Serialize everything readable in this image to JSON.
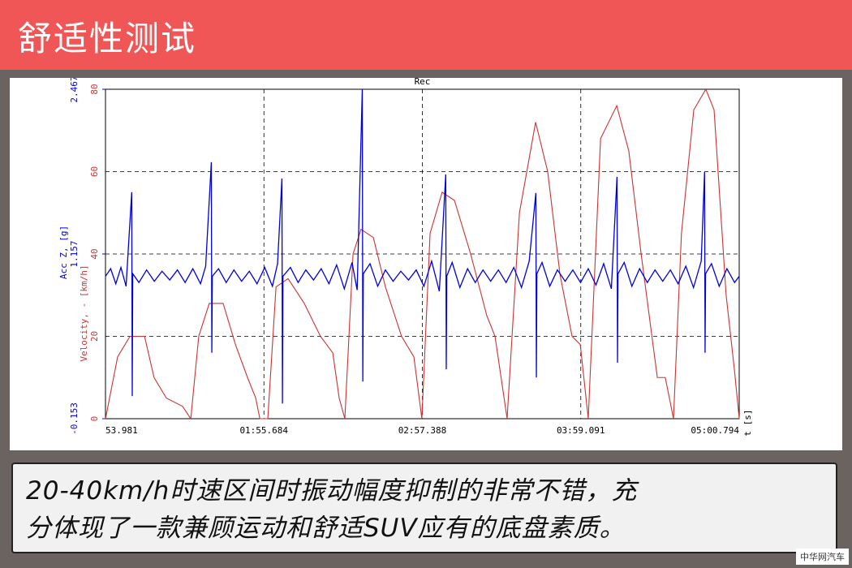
{
  "header": {
    "title": "舒适性测试"
  },
  "caption": {
    "lines": [
      "20-40km/h时速区间时振动幅度抑制的非常不错，充",
      "分体现了一款兼顾运动和舒适SUV应有的底盘素质。"
    ]
  },
  "watermark": "中华网汽车",
  "chart_data": {
    "type": "line",
    "title": "Rec",
    "y_label": "Velocity, - [km/h]",
    "y2_label": "Acc Z, [g]",
    "x_label": "t [s]",
    "xlim": [
      53.981,
      300.794
    ],
    "xticks": [
      {
        "value": 53.981,
        "label": "53.981"
      },
      {
        "value": 115.684,
        "label": "01:55.684"
      },
      {
        "value": 177.388,
        "label": "02:57.388"
      },
      {
        "value": 239.091,
        "label": "03:59.091"
      },
      {
        "value": 300.794,
        "label": "05:00.794"
      }
    ],
    "ylim": [
      0,
      80
    ],
    "yticks": [
      0,
      20,
      40,
      60,
      80
    ],
    "y2lim": [
      -0.153,
      2.467
    ],
    "y2ticks": [
      -0.153,
      1.157,
      2.467
    ],
    "grid": true,
    "series": [
      {
        "name": "Velocity",
        "color": "#cc3333",
        "axis": "y",
        "x": [
          54.0,
          58.7,
          63.5,
          69.2,
          72.9,
          77.7,
          84.0,
          87.2,
          90.3,
          94.4,
          99.8,
          104.6,
          109.3,
          112.5,
          114.1,
          117.2,
          120.4,
          125.1,
          131.4,
          137.7,
          142.5,
          145.0,
          147.2,
          150.4,
          153.5,
          158.3,
          163.0,
          169.3,
          174.1,
          177.2,
          180.4,
          185.1,
          189.9,
          196.2,
          202.5,
          205.7,
          210.4,
          215.2,
          221.5,
          226.2,
          231.0,
          235.7,
          238.9,
          242.0,
          246.8,
          253.1,
          257.8,
          262.6,
          268.9,
          272.0,
          275.2,
          278.3,
          283.1,
          287.8,
          291.0,
          295.7,
          298.9,
          300.8
        ],
        "values": [
          0,
          15,
          20,
          20,
          10,
          5,
          3,
          0,
          20,
          28,
          28,
          18,
          10,
          5,
          0,
          0,
          32,
          34,
          28,
          20,
          16,
          5,
          0,
          40,
          46,
          44,
          32,
          20,
          15,
          0,
          45,
          55,
          53,
          40,
          25,
          20,
          0,
          50,
          72,
          60,
          35,
          20,
          18,
          0,
          68,
          76,
          65,
          40,
          10,
          10,
          0,
          45,
          75,
          80,
          75,
          30,
          12,
          0
        ]
      },
      {
        "name": "Acc Z",
        "color": "#0000dd",
        "axis": "y2",
        "x": [
          54.0,
          56,
          58,
          60,
          62,
          64.2,
          64.4,
          64.6,
          67,
          70,
          73,
          76,
          79,
          82,
          85,
          88,
          91,
          93,
          95.2,
          95.4,
          95.6,
          98,
          101,
          104,
          107,
          110,
          113,
          116,
          119,
          121,
          122.7,
          122.9,
          123.1,
          126,
          129,
          132,
          135,
          138,
          141,
          144,
          147,
          150,
          152,
          154.0,
          154.2,
          154.4,
          157,
          160,
          163,
          166,
          169,
          172,
          175,
          178,
          181,
          184,
          186.5,
          186.7,
          186.9,
          189,
          192,
          195,
          198,
          201,
          204,
          207,
          210,
          213,
          216,
          219,
          221.6,
          221.8,
          222.0,
          224,
          227,
          230,
          233,
          236,
          239,
          242,
          245,
          248,
          251,
          253.2,
          253.4,
          253.6,
          256,
          259,
          262,
          265,
          268,
          271,
          274,
          277,
          280,
          283,
          286,
          287.3,
          287.5,
          287.7,
          290,
          293,
          296,
          299,
          300.8
        ],
        "values": [
          0.98,
          1.04,
          0.92,
          1.05,
          0.9,
          1.648,
          0.027,
          1.0,
          0.93,
          1.03,
          0.94,
          1.02,
          0.95,
          1.03,
          0.93,
          1.04,
          0.92,
          1.06,
          1.887,
          0.371,
          0.98,
          1.04,
          0.93,
          1.03,
          0.94,
          1.02,
          0.92,
          1.05,
          0.9,
          1.08,
          1.757,
          -0.032,
          0.98,
          1.05,
          0.93,
          1.03,
          0.95,
          1.04,
          0.92,
          1.07,
          0.88,
          1.09,
          0.87,
          2.467,
          0.142,
          1.0,
          1.08,
          0.9,
          1.03,
          0.94,
          1.02,
          0.95,
          1.03,
          0.9,
          1.1,
          0.86,
          1.789,
          0.24,
          0.98,
          1.09,
          0.89,
          1.04,
          0.93,
          1.03,
          0.94,
          1.03,
          0.93,
          1.05,
          0.89,
          1.1,
          1.642,
          0.175,
          1.0,
          1.09,
          0.9,
          1.03,
          0.94,
          1.03,
          0.93,
          1.04,
          0.91,
          1.08,
          0.88,
          1.77,
          0.292,
          1.0,
          1.09,
          0.9,
          1.04,
          0.93,
          1.03,
          0.94,
          1.03,
          0.92,
          1.06,
          0.89,
          1.1,
          1.809,
          0.371,
          1.0,
          1.08,
          0.9,
          1.04,
          0.93,
          0.98
        ]
      }
    ]
  }
}
